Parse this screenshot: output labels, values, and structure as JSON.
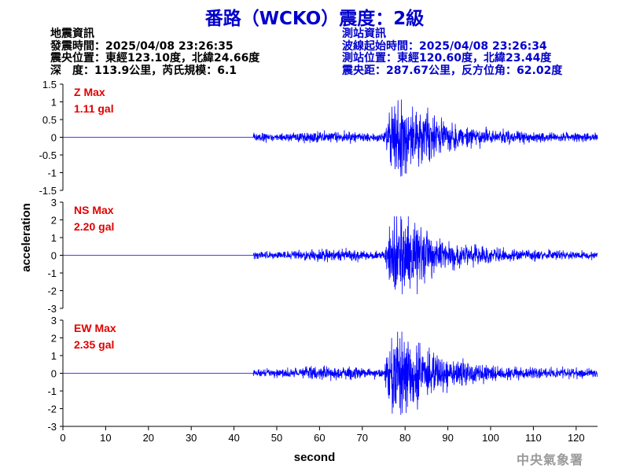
{
  "title": "番路（WCKO）震度：2級",
  "earthquake_info": {
    "heading": "地震資訊",
    "origin_time": "發震時間：2025/04/08 23:26:35",
    "epicenter": "震央位置：東經123.10度，北緯24.66度",
    "depth_magnitude": "深　度：113.9公里，芮氏規模：6.1"
  },
  "station_info": {
    "heading": "測站資訊",
    "wave_start": "波線起始時間：2025/04/08 23:26:34",
    "station_location": "測站位置：東經120.60度，北緯23.44度",
    "distance_azimuth": "震央距：287.67公里，反方位角：62.02度"
  },
  "agency": "中央氣象署",
  "colors": {
    "title": "#0000cc",
    "trace": "#0000ff",
    "max_label": "#e00000",
    "station_text": "#0000cc",
    "agency": "#9a9a9a"
  },
  "chart_data": {
    "type": "line",
    "xlabel": "second",
    "ylabel": "acceleration",
    "xlim": [
      0,
      125
    ],
    "xticks": [
      0,
      10,
      20,
      30,
      40,
      50,
      60,
      70,
      80,
      90,
      100,
      110,
      120
    ],
    "panels": [
      {
        "name": "Z",
        "max_label": "Z Max",
        "max_value": "1.11 gal",
        "peak": 1.11,
        "ylim": [
          -1.5,
          1.5
        ],
        "yticks": [
          1.5,
          1,
          0.5,
          0,
          -0.5,
          -1,
          -1.5
        ],
        "ytick_labels": [
          "1.5",
          "1",
          "0.5",
          "0",
          "-0.5",
          "-1",
          "-1.5"
        ]
      },
      {
        "name": "NS",
        "max_label": "NS Max",
        "max_value": "2.20 gal",
        "peak": 2.2,
        "ylim": [
          -3,
          3
        ],
        "yticks": [
          3,
          2,
          1,
          0,
          -1,
          -2,
          -3
        ],
        "ytick_labels": [
          "3",
          "2",
          "1",
          "0",
          "-1",
          "-2",
          "-3"
        ]
      },
      {
        "name": "EW",
        "max_label": "EW Max",
        "max_value": "2.35 gal",
        "peak": 2.35,
        "ylim": [
          -3,
          3
        ],
        "yticks": [
          3,
          2,
          1,
          0,
          -1,
          -2,
          -3
        ],
        "ytick_labels": [
          "3",
          "2",
          "1",
          "0",
          "-1",
          "-2",
          "-3"
        ]
      }
    ],
    "signal_onset_s": 44.5,
    "s_wave_arrival_s": 77,
    "peak_time_s": 79
  }
}
